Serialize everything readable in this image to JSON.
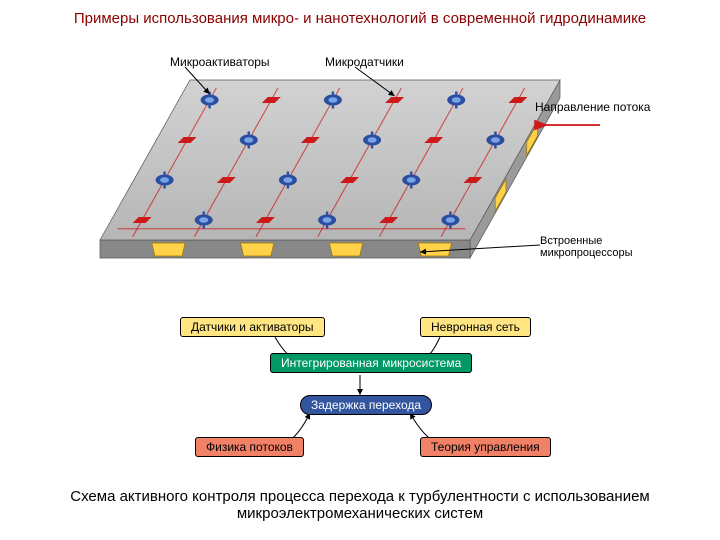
{
  "title": "Примеры использования микро- и нанотехнологий в современной гидродинамике",
  "labels": {
    "microactuators": "Микроактиваторы",
    "microsensors": "Микродатчики",
    "flowdir": "Направление потока",
    "builtin": "Встроенные\nмикропроцессоры"
  },
  "boxes": {
    "sensors_actuators": {
      "text": "Датчики и активаторы",
      "bg": "#ffe682",
      "fg": "#000000"
    },
    "neural_net": {
      "text": "Невронная сеть",
      "bg": "#ffe682",
      "fg": "#000000"
    },
    "microsystem": {
      "text": "Интегрированная микросистема",
      "bg": "#009966",
      "fg": "#ffffff"
    },
    "delay": {
      "text": "Задержка перехода",
      "bg": "#33559e",
      "fg": "#ffffff"
    },
    "physics": {
      "text": "Физика потоков",
      "bg": "#f08066",
      "fg": "#000000"
    },
    "control": {
      "text": "Теория управления",
      "bg": "#f08066",
      "fg": "#000000"
    }
  },
  "slab": {
    "top_fill": "#b6b6b6",
    "top_grad_light": "#d2d2d2",
    "side_fill": "#9a9a9a",
    "front_fill": "#888888",
    "processor_fill": "#ffd24a",
    "processor_stroke": "#a07a00",
    "sensor_fill": "#cc1a1a",
    "actuator_outer": "#2a4ea0",
    "actuator_inner": "#7aa3e8",
    "trace_color": "#cc1a1a",
    "arrow_color": "#cc1a1a",
    "leader_color": "#000000",
    "rows": 4,
    "cols": 6
  },
  "caption": "Схема активного контроля процесса перехода к турбулентности с использованием микроэлектромеханических систем"
}
